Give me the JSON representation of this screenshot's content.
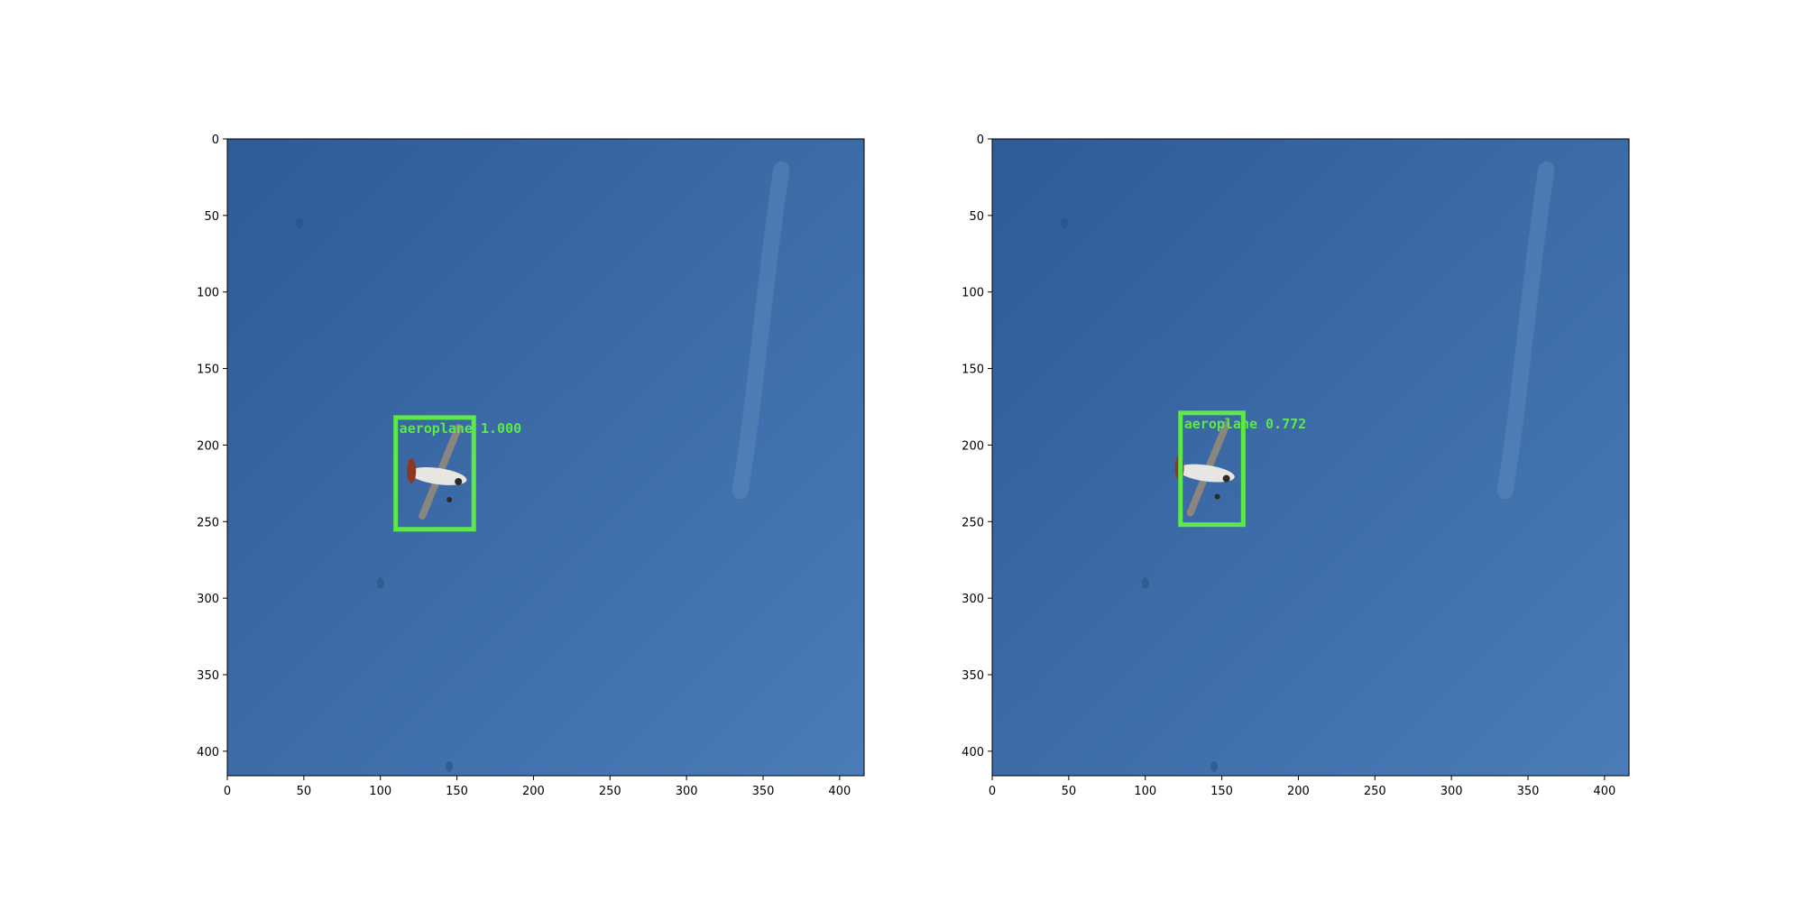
{
  "panels": [
    {
      "detection": {
        "label": "aeroplane",
        "score": "1.000",
        "box": [
          110,
          182,
          161,
          255
        ]
      },
      "plane": [
        138,
        218
      ]
    },
    {
      "detection": {
        "label": "aeroplane",
        "score": "0.772",
        "box": [
          123,
          179,
          164,
          252
        ]
      },
      "plane": [
        140,
        216
      ]
    }
  ],
  "axes": {
    "x_ticks": [
      "0",
      "50",
      "100",
      "150",
      "200",
      "250",
      "300",
      "350",
      "400"
    ],
    "y_ticks": [
      "0",
      "50",
      "100",
      "150",
      "200",
      "250",
      "300",
      "350",
      "400"
    ],
    "image_size": [
      416,
      416
    ]
  },
  "colors": {
    "box": "#5ee84a",
    "sky_dark": "#2f5b98",
    "sky_light": "#4a7cb8"
  }
}
